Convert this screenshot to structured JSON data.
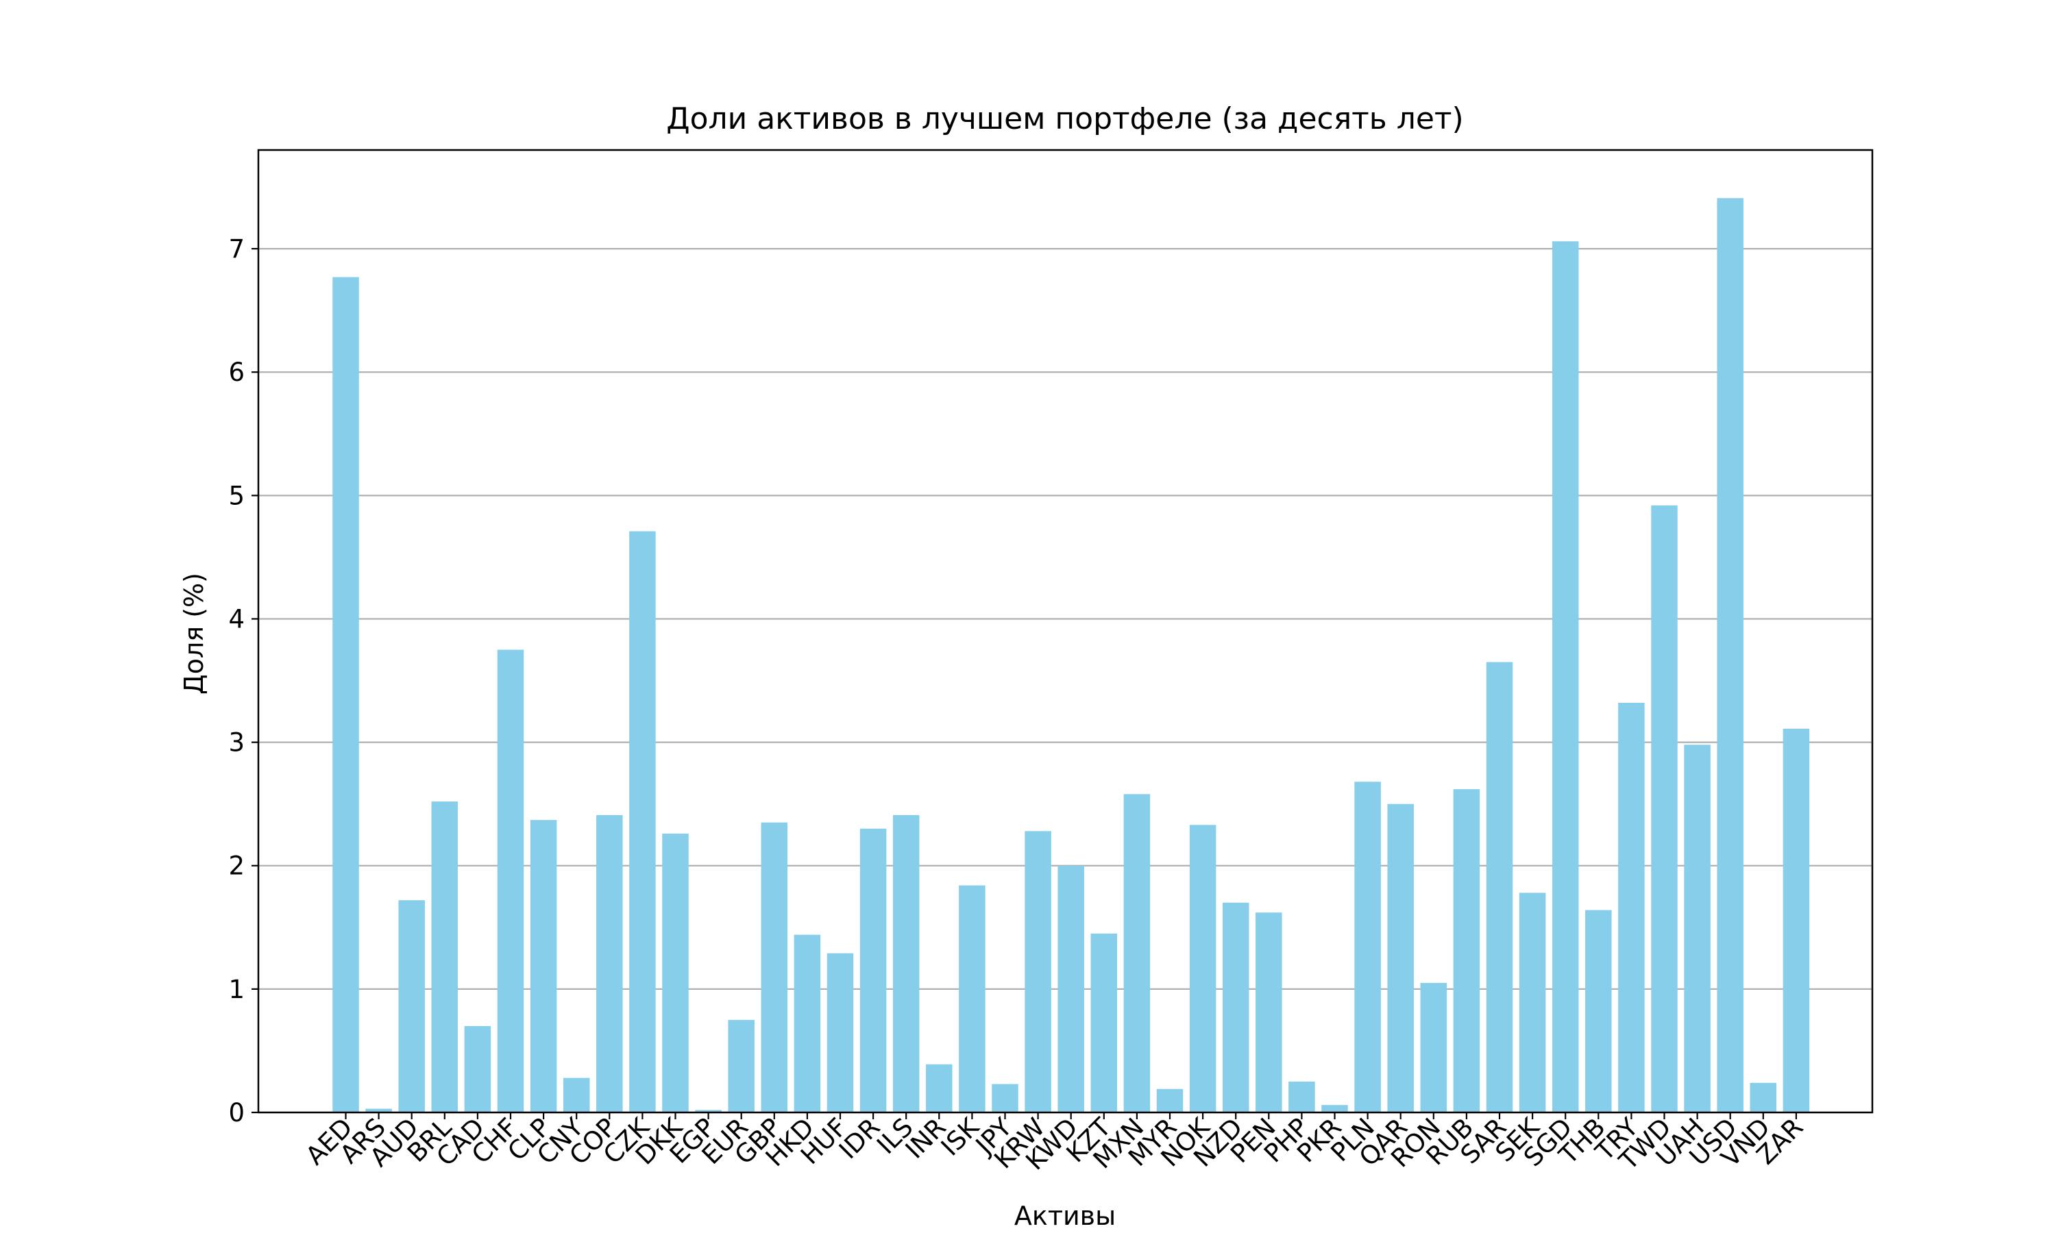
{
  "chart_data": {
    "type": "bar",
    "title": "Доли активов в лучшем портфеле (за десять лет)",
    "xlabel": "Активы",
    "ylabel": "Доля (%)",
    "categories": [
      "AED",
      "ARS",
      "AUD",
      "BRL",
      "CAD",
      "CHF",
      "CLP",
      "CNY",
      "COP",
      "CZK",
      "DKK",
      "EGP",
      "EUR",
      "GBP",
      "HKD",
      "HUF",
      "IDR",
      "ILS",
      "INR",
      "ISK",
      "JPY",
      "KRW",
      "KWD",
      "KZT",
      "MXN",
      "MYR",
      "NOK",
      "NZD",
      "PEN",
      "PHP",
      "PKR",
      "PLN",
      "QAR",
      "RON",
      "RUB",
      "SAR",
      "SEK",
      "SGD",
      "THB",
      "TRY",
      "TWD",
      "UAH",
      "USD",
      "VND",
      "ZAR"
    ],
    "values": [
      6.77,
      0.03,
      1.72,
      2.52,
      0.7,
      3.75,
      2.37,
      0.28,
      2.41,
      4.71,
      2.26,
      0.02,
      0.75,
      2.35,
      1.44,
      1.29,
      2.3,
      2.41,
      0.39,
      1.84,
      0.23,
      2.28,
      2.0,
      1.45,
      2.58,
      0.19,
      2.33,
      1.7,
      1.62,
      0.25,
      0.06,
      2.68,
      2.5,
      1.05,
      2.62,
      3.65,
      1.78,
      7.06,
      1.64,
      3.32,
      4.92,
      2.98,
      7.41,
      0.24,
      3.11
    ],
    "ylim": [
      0,
      7.8
    ],
    "yticks": [
      0,
      1,
      2,
      3,
      4,
      5,
      6,
      7
    ],
    "grid": "y",
    "colors": {
      "bar": "#87ceeb",
      "grid": "#b0b0b0",
      "axis": "#000000"
    }
  }
}
